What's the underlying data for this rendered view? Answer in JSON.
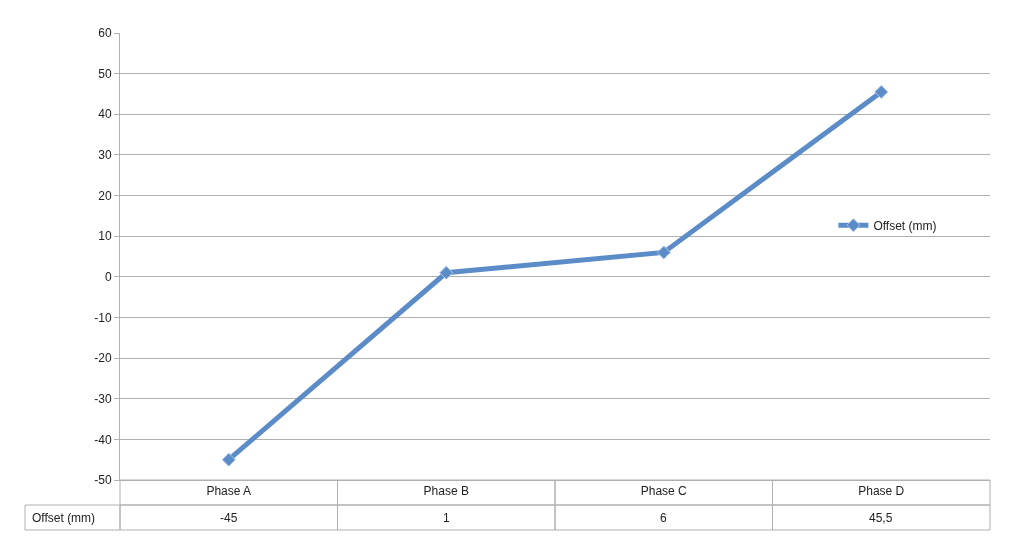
{
  "chart_data": {
    "type": "line",
    "categories": [
      "Phase A",
      "Phase B",
      "Phase C",
      "Phase D"
    ],
    "series": [
      {
        "name": "Offset (mm)",
        "color": "#5b8cc8",
        "values": [
          -45,
          1,
          6,
          45.5
        ],
        "value_labels": [
          "-45",
          "1",
          "6",
          "45,5"
        ]
      }
    ],
    "ylim": [
      -50,
      60
    ],
    "yticks": [
      -50,
      -40,
      -30,
      -20,
      -10,
      0,
      10,
      20,
      30,
      40,
      50,
      60
    ],
    "grid": "y",
    "legend": "right",
    "marker": "diamond",
    "line_style": "solid"
  }
}
